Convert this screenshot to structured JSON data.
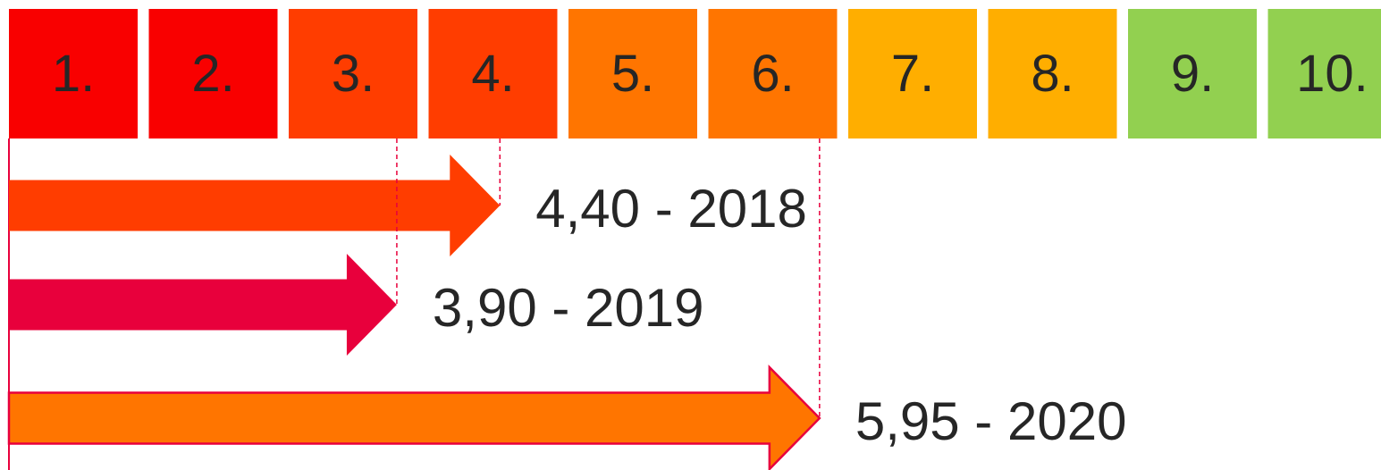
{
  "scale": {
    "labels": [
      "1.",
      "2.",
      "3.",
      "4.",
      "5.",
      "6.",
      "7.",
      "8.",
      "9.",
      "10."
    ],
    "colors": [
      "#f90000",
      "#f90000",
      "#ff3d00",
      "#ff3d00",
      "#ff7500",
      "#ff7500",
      "#ffae00",
      "#ffae00",
      "#92d050",
      "#92d050"
    ]
  },
  "arrows": [
    {
      "label": "4,40 - 2018",
      "value": 4.4,
      "color": "#ff3d00"
    },
    {
      "label": "3,90 - 2019",
      "value": 3.9,
      "color": "#e8003c"
    },
    {
      "label": "5,95 - 2020",
      "value": 5.95,
      "color": "#ff7500",
      "stroke": "#e8003c"
    }
  ]
}
